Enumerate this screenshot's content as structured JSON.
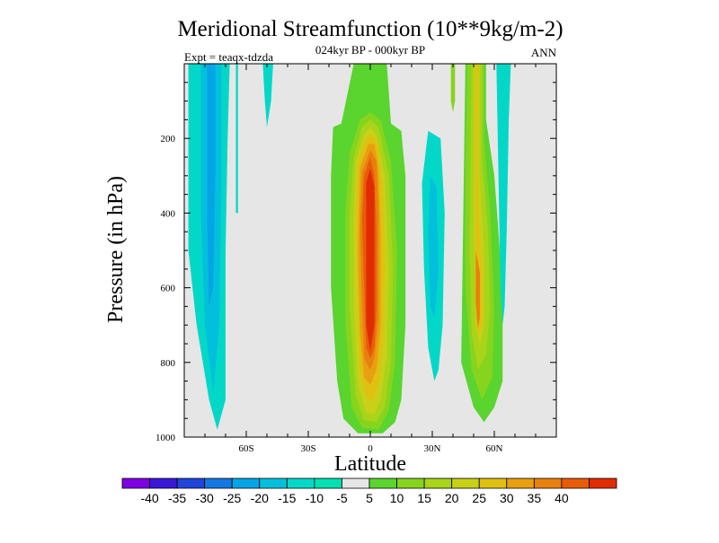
{
  "chart_data": {
    "type": "contour",
    "title": "Meridional Streamfunction (10**9kg/m-2)",
    "subtitle_center": "024kyr BP - 000kyr BP",
    "subtitle_left": "Expt = teaqx-tdzda",
    "subtitle_right": "ANN",
    "xlabel": "Latitude",
    "ylabel": "Pressure (in hPa)",
    "xlim": [
      -90,
      90
    ],
    "ylim": [
      0,
      1000
    ],
    "x_ticks": [
      {
        "value": -60,
        "label": "60S"
      },
      {
        "value": -30,
        "label": "30S"
      },
      {
        "value": 0,
        "label": "0"
      },
      {
        "value": 30,
        "label": "30N"
      },
      {
        "value": 60,
        "label": "60N"
      }
    ],
    "y_ticks": [
      {
        "value": 200,
        "label": "200"
      },
      {
        "value": 400,
        "label": "400"
      },
      {
        "value": 600,
        "label": "600"
      },
      {
        "value": 800,
        "label": "800"
      },
      {
        "value": 1000,
        "label": "1000"
      }
    ],
    "background_color": "#e6e6e6",
    "colorbar": {
      "colors": [
        "#7f00e0",
        "#3a18d6",
        "#2045d8",
        "#1478e0",
        "#04a5e6",
        "#02c0dc",
        "#03d8c8",
        "#00e0b0",
        "#e6e6e6",
        "#5ad42e",
        "#86d41e",
        "#a8d41a",
        "#c8d018",
        "#e0c010",
        "#e8a010",
        "#e88010",
        "#e85c08",
        "#e02c00"
      ],
      "labels": [
        "-40",
        "-35",
        "-30",
        "-25",
        "-20",
        "-15",
        "-10",
        "-5",
        "5",
        "10",
        "15",
        "20",
        "25",
        "30",
        "35",
        "40"
      ]
    },
    "regions": [
      {
        "name": "sh-outer-band",
        "value": -10,
        "color": "#03d8c8",
        "points": [
          [
            -88,
            0
          ],
          [
            -68,
            0
          ],
          [
            -69,
            200
          ],
          [
            -70,
            500
          ],
          [
            -70,
            900
          ],
          [
            -74,
            980
          ],
          [
            -78,
            900
          ],
          [
            -84,
            700
          ],
          [
            -88,
            500
          ]
        ]
      },
      {
        "name": "sh-mid-band",
        "value": -15,
        "color": "#02c0dc",
        "points": [
          [
            -82,
            0
          ],
          [
            -72,
            0
          ],
          [
            -72,
            300
          ],
          [
            -73,
            700
          ],
          [
            -76,
            880
          ],
          [
            -80,
            700
          ],
          [
            -82,
            400
          ]
        ]
      },
      {
        "name": "sh-core",
        "value": -20,
        "color": "#04a5e6",
        "points": [
          [
            -79,
            0
          ],
          [
            -75,
            0
          ],
          [
            -75,
            300
          ],
          [
            -76,
            600
          ],
          [
            -78,
            650
          ],
          [
            -79,
            400
          ]
        ]
      },
      {
        "name": "sh-strip",
        "value": -10,
        "color": "#03d8c8",
        "points": [
          [
            -65,
            0
          ],
          [
            -64,
            0
          ],
          [
            -64,
            400
          ],
          [
            -65,
            400
          ]
        ]
      },
      {
        "name": "sh-small-drip",
        "value": -10,
        "color": "#03d8c8",
        "points": [
          [
            -52,
            0
          ],
          [
            -47,
            0
          ],
          [
            -48,
            100
          ],
          [
            -50,
            170
          ],
          [
            -51,
            100
          ]
        ]
      },
      {
        "name": "eq-outer",
        "value": 5,
        "color": "#5ad42e",
        "points": [
          [
            -18,
            170
          ],
          [
            -14,
            160
          ],
          [
            -8,
            0
          ],
          [
            8,
            0
          ],
          [
            10,
            160
          ],
          [
            15,
            180
          ],
          [
            17,
            300
          ],
          [
            17,
            700
          ],
          [
            15,
            900
          ],
          [
            12,
            960
          ],
          [
            6,
            990
          ],
          [
            -6,
            990
          ],
          [
            -13,
            950
          ],
          [
            -16,
            850
          ],
          [
            -19,
            600
          ],
          [
            -19,
            300
          ]
        ]
      },
      {
        "name": "eq-10",
        "value": 10,
        "color": "#86d41e",
        "points": [
          [
            -10,
            240
          ],
          [
            -5,
            150
          ],
          [
            0,
            130
          ],
          [
            5,
            150
          ],
          [
            10,
            260
          ],
          [
            13,
            500
          ],
          [
            12,
            800
          ],
          [
            9,
            930
          ],
          [
            4,
            980
          ],
          [
            -4,
            975
          ],
          [
            -9,
            920
          ],
          [
            -12,
            700
          ],
          [
            -12,
            400
          ]
        ]
      },
      {
        "name": "eq-15",
        "value": 15,
        "color": "#a8d41a",
        "points": [
          [
            -8,
            250
          ],
          [
            -4,
            170
          ],
          [
            0,
            150
          ],
          [
            4,
            170
          ],
          [
            9,
            300
          ],
          [
            11,
            550
          ],
          [
            10,
            800
          ],
          [
            7,
            920
          ],
          [
            3,
            960
          ],
          [
            -3,
            955
          ],
          [
            -7,
            890
          ],
          [
            -10,
            650
          ],
          [
            -10,
            400
          ]
        ]
      },
      {
        "name": "eq-20",
        "value": 20,
        "color": "#c8d018",
        "points": [
          [
            -7,
            260
          ],
          [
            -3,
            190
          ],
          [
            0,
            170
          ],
          [
            3,
            190
          ],
          [
            7,
            300
          ],
          [
            9,
            550
          ],
          [
            8,
            780
          ],
          [
            5,
            900
          ],
          [
            2,
            940
          ],
          [
            -2,
            935
          ],
          [
            -6,
            860
          ],
          [
            -8,
            650
          ],
          [
            -8,
            400
          ]
        ]
      },
      {
        "name": "eq-25",
        "value": 25,
        "color": "#e0c010",
        "points": [
          [
            -6,
            270
          ],
          [
            -2,
            200
          ],
          [
            1,
            190
          ],
          [
            4,
            220
          ],
          [
            6,
            330
          ],
          [
            7,
            550
          ],
          [
            6,
            750
          ],
          [
            4,
            860
          ],
          [
            1,
            900
          ],
          [
            -2,
            895
          ],
          [
            -5,
            820
          ],
          [
            -6,
            600
          ],
          [
            -7,
            420
          ]
        ]
      },
      {
        "name": "eq-30",
        "value": 30,
        "color": "#e8a010",
        "points": [
          [
            -5,
            280
          ],
          [
            -1,
            215
          ],
          [
            2,
            215
          ],
          [
            4,
            280
          ],
          [
            5,
            450
          ],
          [
            5,
            700
          ],
          [
            3,
            820
          ],
          [
            0,
            860
          ],
          [
            -3,
            840
          ],
          [
            -5,
            720
          ],
          [
            -6,
            500
          ]
        ]
      },
      {
        "name": "eq-35",
        "value": 35,
        "color": "#e88010",
        "points": [
          [
            -4,
            290
          ],
          [
            0,
            230
          ],
          [
            3,
            260
          ],
          [
            4,
            400
          ],
          [
            4,
            680
          ],
          [
            2,
            790
          ],
          [
            0,
            820
          ],
          [
            -3,
            790
          ],
          [
            -4,
            650
          ],
          [
            -5,
            450
          ]
        ]
      },
      {
        "name": "eq-40",
        "value": 40,
        "color": "#e85c08",
        "points": [
          [
            -3,
            300
          ],
          [
            0,
            250
          ],
          [
            2,
            300
          ],
          [
            3,
            450
          ],
          [
            3,
            650
          ],
          [
            2,
            760
          ],
          [
            0,
            790
          ],
          [
            -2,
            760
          ],
          [
            -3,
            600
          ],
          [
            -4,
            420
          ]
        ]
      },
      {
        "name": "eq-peak",
        "value": 45,
        "color": "#e02c00",
        "points": [
          [
            -2,
            320
          ],
          [
            0,
            280
          ],
          [
            2,
            330
          ],
          [
            2,
            700
          ],
          [
            0,
            770
          ],
          [
            -2,
            700
          ]
        ]
      },
      {
        "name": "nh-neg-band",
        "value": -10,
        "color": "#03d8c8",
        "points": [
          [
            28,
            180
          ],
          [
            34,
            200
          ],
          [
            36,
            400
          ],
          [
            35,
            700
          ],
          [
            33,
            820
          ],
          [
            31,
            850
          ],
          [
            28,
            760
          ],
          [
            26,
            550
          ],
          [
            25,
            320
          ]
        ]
      },
      {
        "name": "nh-neg-core",
        "value": -15,
        "color": "#02c0dc",
        "points": [
          [
            29,
            300
          ],
          [
            32,
            330
          ],
          [
            33,
            550
          ],
          [
            31,
            680
          ],
          [
            29,
            650
          ],
          [
            28,
            450
          ]
        ]
      },
      {
        "name": "nh-strip",
        "value": 10,
        "color": "#86d41e",
        "points": [
          [
            39,
            0
          ],
          [
            41,
            0
          ],
          [
            41,
            100
          ],
          [
            40,
            130
          ],
          [
            39,
            100
          ]
        ]
      },
      {
        "name": "nh-pos-outer",
        "value": 5,
        "color": "#5ad42e",
        "points": [
          [
            46,
            0
          ],
          [
            56,
            0
          ],
          [
            56,
            150
          ],
          [
            60,
            300
          ],
          [
            64,
            600
          ],
          [
            64,
            850
          ],
          [
            60,
            920
          ],
          [
            55,
            960
          ],
          [
            50,
            920
          ],
          [
            44,
            800
          ],
          [
            45,
            400
          ]
        ]
      },
      {
        "name": "nh-pos-10",
        "value": 10,
        "color": "#86d41e",
        "points": [
          [
            47,
            0
          ],
          [
            55,
            0
          ],
          [
            55,
            200
          ],
          [
            58,
            400
          ],
          [
            60,
            650
          ],
          [
            59,
            840
          ],
          [
            54,
            900
          ],
          [
            49,
            820
          ],
          [
            46,
            600
          ],
          [
            46,
            300
          ]
        ]
      },
      {
        "name": "nh-pos-15",
        "value": 15,
        "color": "#a8d41a",
        "points": [
          [
            49,
            0
          ],
          [
            54,
            0
          ],
          [
            54,
            250
          ],
          [
            57,
            450
          ],
          [
            58,
            650
          ],
          [
            56,
            780
          ],
          [
            52,
            820
          ],
          [
            49,
            720
          ],
          [
            48,
            500
          ]
        ]
      },
      {
        "name": "nh-pos-20",
        "value": 20,
        "color": "#c8d018",
        "points": [
          [
            50,
            0
          ],
          [
            53,
            0
          ],
          [
            53,
            300
          ],
          [
            55,
            500
          ],
          [
            55,
            700
          ],
          [
            53,
            760
          ],
          [
            51,
            700
          ],
          [
            50,
            450
          ]
        ]
      },
      {
        "name": "nh-pos-25",
        "value": 25,
        "color": "#e0c010",
        "points": [
          [
            51,
            0
          ],
          [
            52,
            0
          ],
          [
            52,
            350
          ],
          [
            54,
            550
          ],
          [
            54,
            700
          ],
          [
            52,
            730
          ],
          [
            51,
            600
          ],
          [
            51,
            350
          ]
        ]
      },
      {
        "name": "nh-pos-35",
        "value": 35,
        "color": "#e88010",
        "points": [
          [
            51,
            500
          ],
          [
            53,
            560
          ],
          [
            53,
            680
          ],
          [
            52,
            710
          ],
          [
            51,
            640
          ]
        ]
      },
      {
        "name": "nh-high-band",
        "value": -10,
        "color": "#03d8c8",
        "points": [
          [
            61,
            0
          ],
          [
            68,
            0
          ],
          [
            67,
            150
          ],
          [
            66,
            450
          ],
          [
            65,
            650
          ],
          [
            64,
            700
          ],
          [
            63,
            600
          ],
          [
            62,
            300
          ]
        ]
      }
    ]
  }
}
